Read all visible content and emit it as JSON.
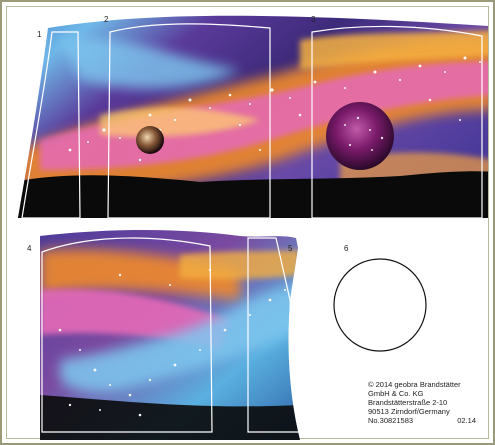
{
  "parts": {
    "labels": [
      "1",
      "2",
      "3",
      "4",
      "5",
      "6"
    ]
  },
  "credits": {
    "line1": "© 2014 geobra Brandstätter",
    "line2": "GmbH & Co. KG",
    "line3": "Brandstätterstraße  2-10",
    "line4": "90513 Zirndorf/Germany",
    "part_number": "No.30821583",
    "date_code": "02.14"
  },
  "colors": {
    "sky_blue": "#5fa8dc",
    "deep_purple": "#4a2a8a",
    "orange": "#f08a2a",
    "pink": "#e070b8",
    "ground": "#0a0a0a",
    "border": "#9a9a7a"
  }
}
